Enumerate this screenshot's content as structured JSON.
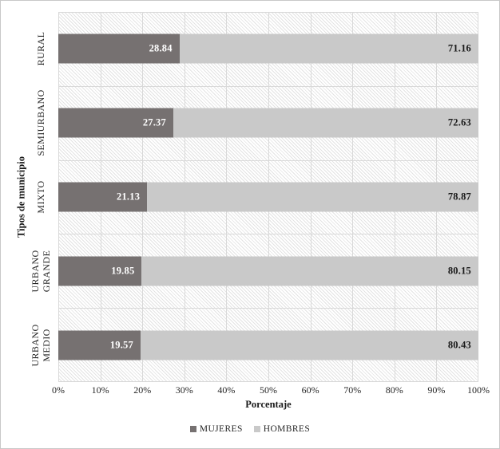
{
  "figure": {
    "background": "#ffffff",
    "border_color": "#c8c8c8"
  },
  "chart_data": {
    "type": "bar",
    "orientation": "horizontal",
    "stacked": true,
    "title": "",
    "xlabel": "Porcentaje",
    "ylabel": "Tipos de municipio",
    "categories": [
      "RURAL",
      "SEMIURBANO",
      "MIXTO",
      "URBANO GRANDE",
      "URBANO MEDIO"
    ],
    "series": [
      {
        "name": "MUJERES",
        "color": "#767171",
        "label_color": "#ffffff",
        "values": [
          28.84,
          27.37,
          21.13,
          19.85,
          19.57
        ]
      },
      {
        "name": "HOMBRES",
        "color": "#c9c9c9",
        "label_color": "#1a1a1a",
        "values": [
          71.16,
          72.63,
          78.87,
          80.15,
          80.43
        ]
      }
    ],
    "xlim": [
      0,
      100
    ],
    "x_ticks": [
      "0%",
      "10%",
      "20%",
      "30%",
      "40%",
      "50%",
      "60%",
      "70%",
      "80%",
      "90%",
      "100%"
    ],
    "grid": true,
    "gridline_color": "#d9d9d9",
    "plot_background": "diagonal-hatch",
    "hatch_line_color": "#e3e3e3",
    "legend_position": "bottom",
    "value_label_decimals": 2
  }
}
